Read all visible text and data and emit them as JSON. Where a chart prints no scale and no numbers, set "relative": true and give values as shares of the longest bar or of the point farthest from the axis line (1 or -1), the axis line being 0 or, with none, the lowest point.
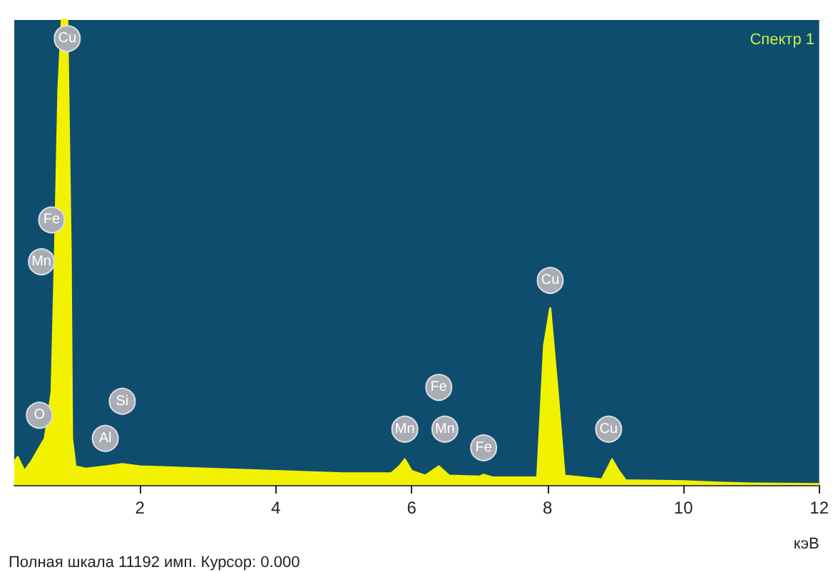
{
  "chart_data": {
    "type": "area",
    "relative": true,
    "xlabel": "кэВ",
    "legend": "top right",
    "grid": false,
    "xlim": [
      0.15,
      12
    ],
    "xticks": [
      2,
      4,
      6,
      8,
      10,
      12
    ],
    "series": [
      {
        "name": "Спектр 1",
        "color": "#f2f200",
        "x": [
          0.15,
          0.2,
          0.3,
          0.4,
          0.52,
          0.6,
          0.7,
          0.75,
          0.8,
          0.85,
          0.93,
          0.98,
          1.0,
          1.05,
          1.2,
          1.5,
          1.74,
          2,
          3,
          4,
          5,
          5.7,
          5.82,
          5.9,
          6.0,
          6.2,
          6.4,
          6.55,
          7.0,
          7.06,
          7.2,
          7.85,
          7.95,
          8.04,
          8.15,
          8.25,
          8.8,
          8.9,
          8.95,
          9.05,
          9.15,
          10,
          10.5,
          11,
          12
        ],
        "values": [
          0.05,
          0.06,
          0.03,
          0.05,
          0.08,
          0.1,
          0.2,
          0.5,
          0.85,
          1,
          1,
          0.5,
          0.1,
          0.04,
          0.035,
          0.04,
          0.045,
          0.04,
          0.035,
          0.03,
          0.025,
          0.025,
          0.04,
          0.055,
          0.03,
          0.02,
          0.04,
          0.02,
          0.018,
          0.022,
          0.016,
          0.016,
          0.3,
          0.38,
          0.2,
          0.02,
          0.012,
          0.04,
          0.055,
          0.03,
          0.01,
          0.008,
          0.005,
          0.003,
          0.002
        ]
      }
    ],
    "annotations": [
      {
        "text": "Cu",
        "x": 0.93,
        "y": 0.96
      },
      {
        "text": "Fe",
        "x": 0.7,
        "y": 0.57
      },
      {
        "text": "Mn",
        "x": 0.55,
        "y": 0.48
      },
      {
        "text": "O",
        "x": 0.52,
        "y": 0.15
      },
      {
        "text": "Al",
        "x": 1.49,
        "y": 0.1
      },
      {
        "text": "Si",
        "x": 1.74,
        "y": 0.18
      },
      {
        "text": "Mn",
        "x": 5.9,
        "y": 0.12
      },
      {
        "text": "Fe",
        "x": 6.4,
        "y": 0.21
      },
      {
        "text": "Mn",
        "x": 6.49,
        "y": 0.12
      },
      {
        "text": "Fe",
        "x": 7.06,
        "y": 0.08
      },
      {
        "text": "Cu",
        "x": 8.04,
        "y": 0.44
      },
      {
        "text": "Cu",
        "x": 8.9,
        "y": 0.12
      },
      "Полная шкала 11192 имп. Курсор: 0.000"
    ]
  }
}
